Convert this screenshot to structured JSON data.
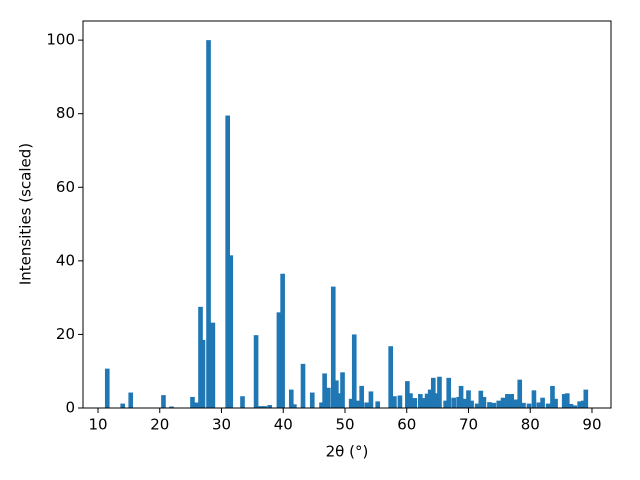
{
  "chart_data": {
    "type": "bar",
    "xlabel": "2θ (°)",
    "ylabel": "Intensities (scaled)",
    "color": "#1f77b4",
    "x": [
      11.5,
      14,
      15.3,
      20.6,
      21.9,
      25.3,
      26.0,
      26.6,
      27.0,
      27.9,
      28.6,
      31.0,
      31.5,
      33.4,
      35.6,
      36.3,
      37.0,
      37.8,
      39.3,
      39.9,
      41.3,
      41.8,
      43.2,
      44.7,
      46.2,
      46.7,
      47.3,
      48.1,
      48.6,
      49.0,
      49.6,
      51.0,
      51.5,
      52.2,
      52.7,
      53.5,
      54.2,
      55.3,
      57.4,
      58.0,
      58.9,
      60.1,
      60.6,
      61.3,
      62.2,
      62.8,
      63.3,
      63.8,
      64.3,
      64.7,
      65.3,
      66.3,
      66.8,
      67.6,
      68.4,
      68.8,
      69.3,
      70.0,
      70.5,
      71.4,
      72.0,
      72.5,
      73.4,
      74.1,
      74.9,
      75.6,
      76.3,
      77.0,
      77.7,
      78.3,
      78.9,
      79.8,
      80.6,
      81.4,
      82.0,
      82.9,
      83.6,
      84.1,
      85.5,
      86.0,
      86.6,
      87.2,
      88.0,
      88.6,
      89.0
    ],
    "values": [
      10.7,
      1.2,
      4.2,
      3.5,
      0.4,
      3,
      1.5,
      27.5,
      18.5,
      100,
      23.2,
      79.5,
      41.5,
      3.2,
      19.8,
      0.5,
      0.5,
      0.8,
      26,
      36.5,
      5,
      1,
      12,
      4.2,
      1.5,
      9.4,
      5.5,
      33,
      7.5,
      4,
      9.7,
      2.5,
      20,
      2,
      6,
      1.5,
      4.5,
      1.8,
      16.8,
      3.2,
      3.4,
      7.3,
      4,
      2.7,
      3.8,
      2.7,
      3.9,
      5,
      8.2,
      4,
      8.5,
      2,
      8.2,
      2.8,
      3,
      6,
      2.5,
      4.8,
      2,
      1.2,
      4.7,
      3,
      1.6,
      1.4,
      2,
      2.8,
      3.8,
      3.8,
      2.3,
      7.7,
      1.4,
      1.2,
      4.8,
      1.5,
      2.8,
      1.2,
      6,
      2.5,
      3.8,
      4,
      1.1,
      0.7,
      1.8,
      2,
      5
    ],
    "xlim": [
      7.57,
      93.08
    ],
    "ylim": [
      0,
      105.2
    ],
    "xticks": [
      10,
      20,
      30,
      40,
      50,
      60,
      70,
      80,
      90
    ],
    "yticks": [
      0,
      20,
      40,
      60,
      80,
      100
    ]
  }
}
